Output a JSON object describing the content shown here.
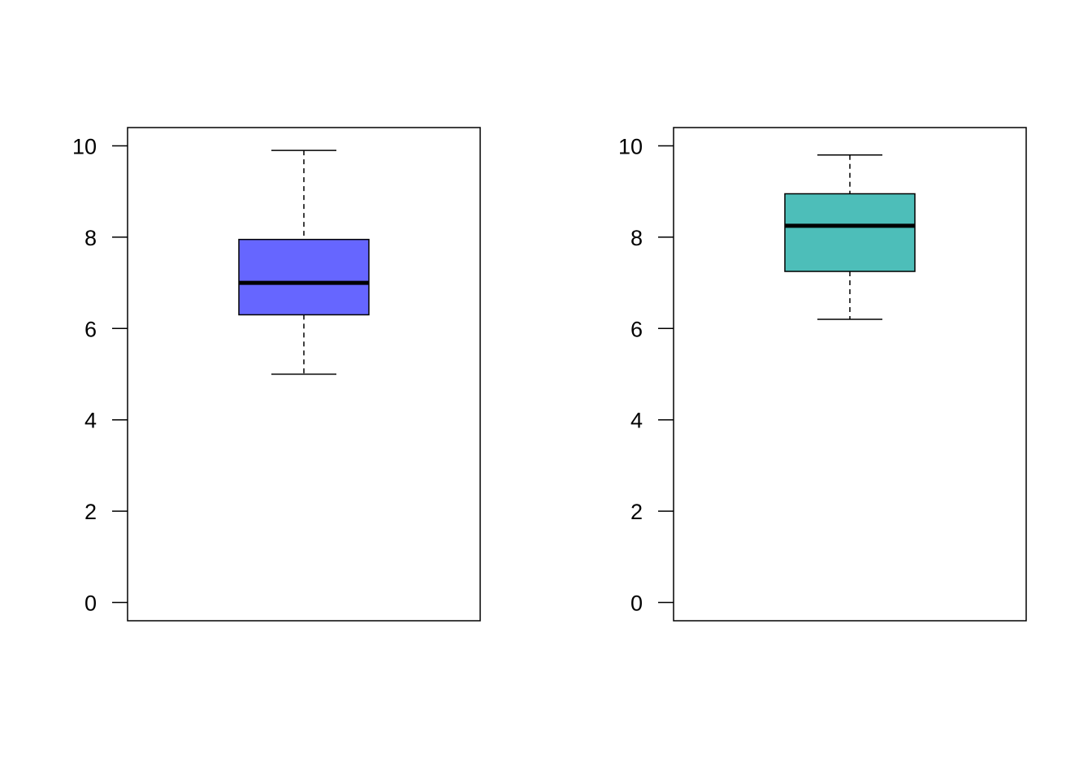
{
  "chart_data": [
    {
      "type": "box",
      "title": "",
      "xlabel": "",
      "ylabel": "",
      "ylim": [
        -0.4,
        10.4
      ],
      "yticks": [
        "0",
        "2",
        "4",
        "6",
        "8",
        "10"
      ],
      "box": {
        "whisker_low": 5.0,
        "q1": 6.3,
        "median": 7.0,
        "q3": 7.95,
        "whisker_high": 9.9
      },
      "fill": "#6666FF",
      "grid": false
    },
    {
      "type": "box",
      "title": "",
      "xlabel": "",
      "ylabel": "",
      "ylim": [
        -0.4,
        10.4
      ],
      "yticks": [
        "0",
        "2",
        "4",
        "6",
        "8",
        "10"
      ],
      "box": {
        "whisker_low": 6.2,
        "q1": 7.25,
        "median": 8.25,
        "q3": 8.95,
        "whisker_high": 9.8
      },
      "fill": "#4DBEB9",
      "grid": false
    }
  ]
}
